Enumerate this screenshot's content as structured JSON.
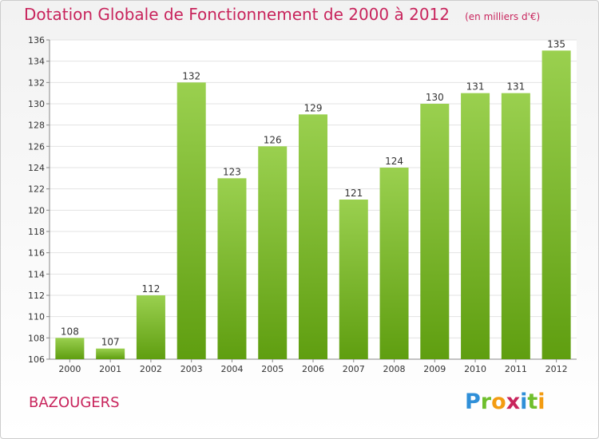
{
  "title": "Dotation Globale de Fonctionnement de 2000 à 2012",
  "subtitle": "(en milliers d'€)",
  "city": "BAZOUGERS",
  "logo": {
    "text": "Proxiti",
    "letters": [
      {
        "ch": "P",
        "color": "#2f8fd8"
      },
      {
        "ch": "r",
        "color": "#6fbf2c"
      },
      {
        "ch": "o",
        "color": "#f39c12"
      },
      {
        "ch": "x",
        "color": "#c8245c"
      },
      {
        "ch": "i",
        "color": "#2f8fd8"
      },
      {
        "ch": "t",
        "color": "#6fbf2c"
      },
      {
        "ch": "i",
        "color": "#f39c12"
      }
    ]
  },
  "colors": {
    "bar_top": "#9ad04f",
    "bar_bottom": "#5f9e10",
    "text_accent": "#c8245c"
  },
  "chart_data": {
    "type": "bar",
    "categories": [
      "2000",
      "2001",
      "2002",
      "2003",
      "2004",
      "2005",
      "2006",
      "2007",
      "2008",
      "2009",
      "2010",
      "2011",
      "2012"
    ],
    "values": [
      108,
      107,
      112,
      132,
      123,
      126,
      129,
      121,
      124,
      130,
      131,
      131,
      135
    ],
    "value_labels": [
      "108",
      "107",
      "112",
      "132",
      "123",
      "126",
      "129",
      "121",
      "124",
      "130",
      "131",
      "131",
      "135"
    ],
    "ylim": [
      106,
      136
    ],
    "yticks": [
      106,
      108,
      110,
      112,
      114,
      116,
      118,
      120,
      122,
      124,
      126,
      128,
      130,
      132,
      134,
      136
    ],
    "grid": true
  }
}
